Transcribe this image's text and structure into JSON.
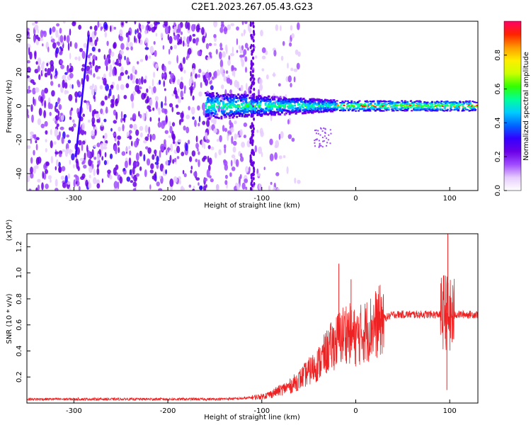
{
  "title": "C2E1.2023.267.05.43.G23",
  "chart_data": [
    {
      "type": "heatmap",
      "xlabel": "Height of straight line (km)",
      "ylabel": "Frequency (Hz)",
      "xlim": [
        -350,
        130
      ],
      "ylim": [
        -50,
        50
      ],
      "x_ticks": [
        -300,
        -200,
        -100,
        0,
        100
      ],
      "y_ticks": [
        -40,
        -20,
        0,
        20,
        40
      ],
      "colorbar": {
        "label": "Normalized spectral amplitude",
        "range": [
          0.0,
          1.0
        ],
        "ticks": [
          "0.0",
          "0.2",
          "0.4",
          "0.6",
          "0.8"
        ],
        "colors": [
          "#ffffff",
          "#e6ccff",
          "#a04bff",
          "#6a00e6",
          "#3300ff",
          "#0066ff",
          "#00ccff",
          "#00ff99",
          "#33ff00",
          "#ccff00",
          "#ffee00",
          "#ff9900",
          "#ff2200",
          "#ff0066"
        ]
      },
      "regions": [
        {
          "x_range": [
            -350,
            -110
          ],
          "freq_range": [
            -50,
            50
          ],
          "amplitude": 0.12
        },
        {
          "x_range": [
            -160,
            -20
          ],
          "freq_range": [
            -8,
            8
          ],
          "amplitude": 0.35
        },
        {
          "x_range": [
            -20,
            130
          ],
          "freq_range": [
            -3,
            3
          ],
          "amplitude": 0.45
        }
      ],
      "grid": false
    },
    {
      "type": "line",
      "xlabel": "Height of straight line (km)",
      "ylabel": "SNR (10 * v/v)",
      "y_multiplier": "(x10⁴)",
      "xlim": [
        -350,
        130
      ],
      "ylim": [
        0,
        1.3
      ],
      "x_ticks": [
        -300,
        -200,
        -100,
        0,
        100
      ],
      "y_ticks": [
        "0.2",
        "0.4",
        "0.6",
        "0.8",
        "1.0",
        "1.2"
      ],
      "series": [
        {
          "color": "#ee2222",
          "x": [
            -350,
            -300,
            -250,
            -200,
            -150,
            -120,
            -100,
            -90,
            -80,
            -70,
            -60,
            -50,
            -40,
            -30,
            -20,
            -10,
            0,
            10,
            20,
            30,
            40,
            50,
            60,
            70,
            80,
            90,
            95,
            100,
            105,
            110,
            120,
            130
          ],
          "values": [
            0.03,
            0.03,
            0.03,
            0.03,
            0.03,
            0.035,
            0.05,
            0.07,
            0.1,
            0.13,
            0.18,
            0.24,
            0.3,
            0.4,
            0.48,
            0.55,
            0.5,
            0.55,
            0.6,
            0.65,
            0.68,
            0.68,
            0.68,
            0.68,
            0.68,
            0.68,
            0.72,
            0.65,
            0.68,
            0.68,
            0.68,
            0.68
          ]
        }
      ],
      "grid": false
    }
  ]
}
